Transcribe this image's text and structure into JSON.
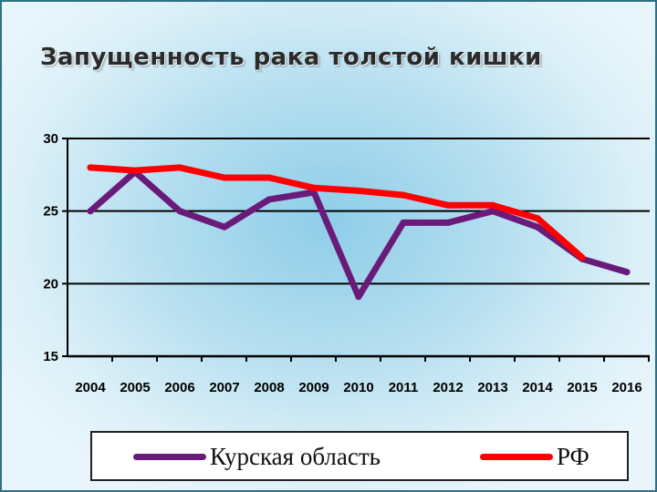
{
  "slide": {
    "title": "Запущенность рака толстой кишки"
  },
  "chart_data": {
    "type": "line",
    "title": "Запущенность рака толстой кишки",
    "x": [
      "2004",
      "2005",
      "2006",
      "2007",
      "2008",
      "2009",
      "2010",
      "2011",
      "2012",
      "2013",
      "2014",
      "2015",
      "2016"
    ],
    "ylim": [
      15,
      30
    ],
    "yticks": [
      15,
      20,
      25,
      30
    ],
    "grid": true,
    "legend_position": "bottom",
    "series": [
      {
        "name": "Курская область",
        "color": "#6a1b7a",
        "values": [
          25.0,
          27.7,
          25.0,
          23.9,
          25.8,
          26.3,
          19.1,
          24.2,
          24.2,
          25.0,
          23.9,
          21.7,
          20.8
        ]
      },
      {
        "name": "РФ",
        "color": "#ff0000",
        "values": [
          28.0,
          27.8,
          28.0,
          27.3,
          27.3,
          26.6,
          26.4,
          26.1,
          25.4,
          25.4,
          24.5,
          21.8,
          null
        ]
      }
    ]
  }
}
